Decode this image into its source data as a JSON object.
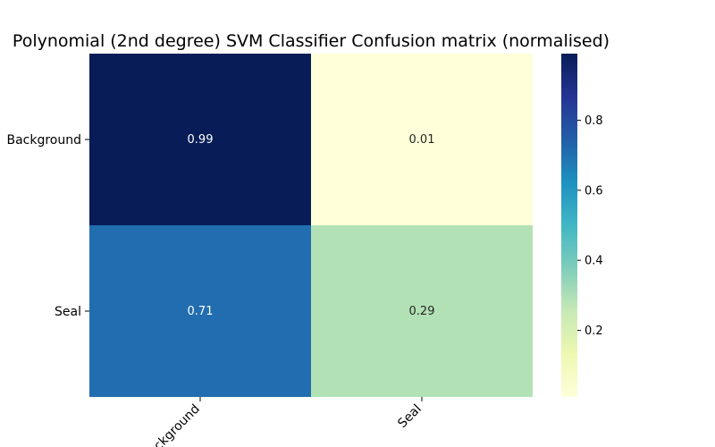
{
  "chart_data": {
    "type": "heatmap",
    "title": "Polynomial (2nd degree) SVM Classifier Confusion matrix (normalised)",
    "xlabel": "",
    "ylabel": "",
    "x_categories": [
      "Background",
      "Seal"
    ],
    "y_categories": [
      "Background",
      "Seal"
    ],
    "matrix": [
      [
        0.99,
        0.01
      ],
      [
        0.71,
        0.29
      ]
    ],
    "cell_labels": [
      [
        "0.99",
        "0.01"
      ],
      [
        "0.71",
        "0.29"
      ]
    ],
    "colormap": "YlGnBu",
    "colorbar": {
      "range": [
        0.01,
        0.99
      ],
      "ticks": [
        0.2,
        0.4,
        0.6,
        0.8
      ],
      "tick_labels": [
        "0.2",
        "0.4",
        "0.6",
        "0.8"
      ]
    },
    "colors": {
      "low": "#ffffd9",
      "high": "#081d58"
    }
  }
}
